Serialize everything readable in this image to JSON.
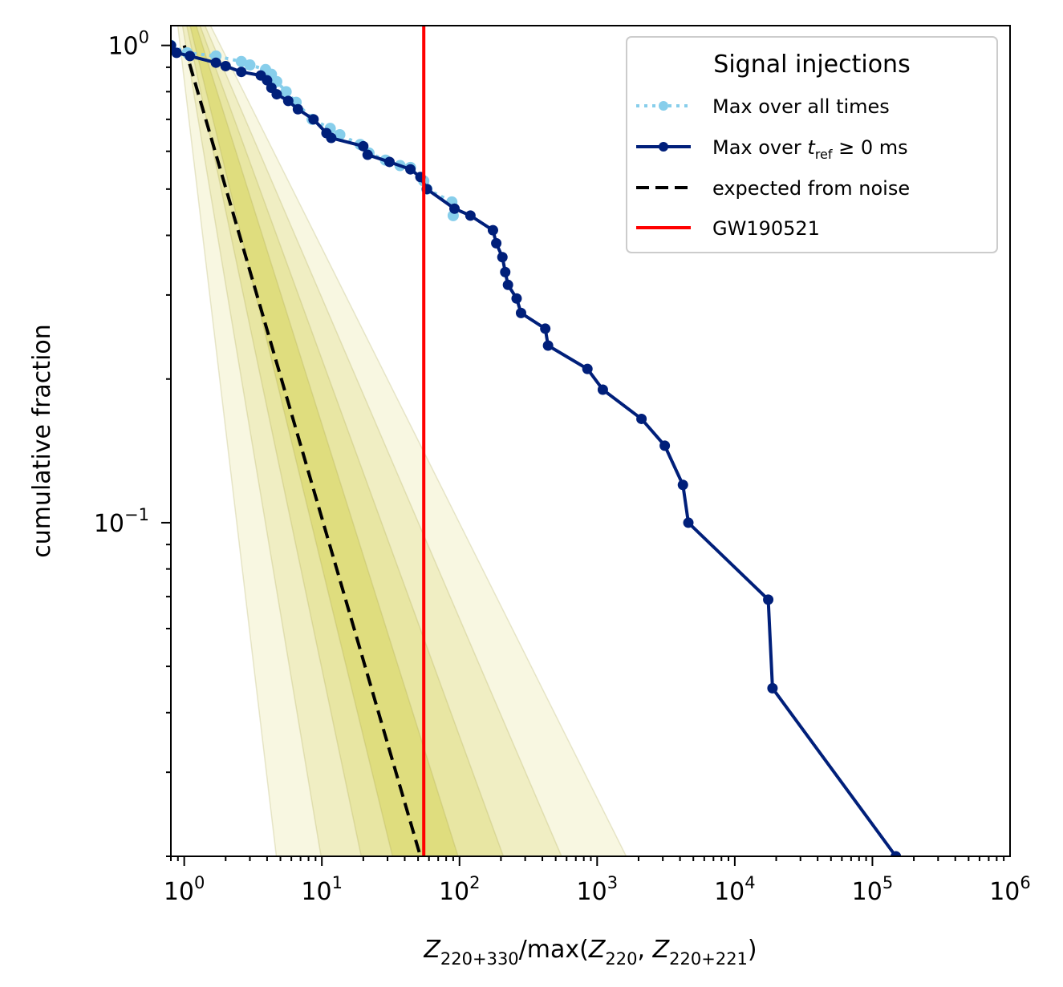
{
  "chart_data": {
    "type": "line",
    "title": "",
    "xlabel": {
      "Z": "Z",
      "sub_num": "220+330",
      "mid": "/max(",
      "sub_a": "220",
      "comma": ", ",
      "sub_b": "220+221",
      "close": ")"
    },
    "ylabel": "cumulative fraction",
    "xscale": "log",
    "yscale": "log",
    "xlim": [
      0.8,
      1000000
    ],
    "ylim": [
      0.02,
      1.1
    ],
    "x_ticks": [
      {
        "value": 1,
        "label": "10",
        "exp": "0"
      },
      {
        "value": 10,
        "label": "10",
        "exp": "1"
      },
      {
        "value": 100,
        "label": "10",
        "exp": "2"
      },
      {
        "value": 1000,
        "label": "10",
        "exp": "3"
      },
      {
        "value": 10000,
        "label": "10",
        "exp": "4"
      },
      {
        "value": 100000,
        "label": "10",
        "exp": "5"
      },
      {
        "value": 1000000,
        "label": "10",
        "exp": "6"
      }
    ],
    "y_ticks": [
      {
        "value": 1,
        "label": "10",
        "exp": "0"
      },
      {
        "value": 0.1,
        "label": "10",
        "exp": "−1"
      }
    ],
    "grid": false,
    "legend": {
      "title": "Signal injections",
      "placement": "top-right",
      "entries": [
        {
          "label": "Max over all times"
        },
        {
          "label_pre": "Max over ",
          "label_var": "t",
          "label_sub": "ref",
          "label_post": " ≥ 0 ms"
        },
        {
          "label": "expected from noise"
        },
        {
          "label": "GW190521"
        }
      ]
    },
    "colors": {
      "all_times": "#87ceeb",
      "t_ref": "#001f7a",
      "noise": "#000000",
      "gw190521": "#ff0000",
      "band": "#d6d35a"
    },
    "gw190521_x": 55,
    "series": [
      {
        "id": "all_times",
        "x": [
          0.8,
          1.05,
          1.7,
          2.6,
          3.0,
          3.9,
          4.3,
          4.7,
          5.5,
          6.5,
          8.5,
          11.5,
          13.5,
          19,
          22,
          29,
          37,
          44,
          55,
          58,
          88,
          90
        ],
        "y": [
          1.0,
          0.965,
          0.95,
          0.925,
          0.91,
          0.89,
          0.87,
          0.84,
          0.8,
          0.76,
          0.7,
          0.67,
          0.65,
          0.62,
          0.595,
          0.575,
          0.56,
          0.555,
          0.52,
          0.5,
          0.47,
          0.44
        ]
      },
      {
        "id": "t_ref",
        "x": [
          0.8,
          0.88,
          1.1,
          1.7,
          2.0,
          2.6,
          3.6,
          4.0,
          4.3,
          4.7,
          5.7,
          6.7,
          8.7,
          10.8,
          11.7,
          20,
          21.5,
          31,
          44,
          52,
          58,
          92,
          120,
          175,
          185,
          205,
          215,
          225,
          260,
          280,
          420,
          440,
          850,
          1100,
          2100,
          3100,
          4200,
          4600,
          17500,
          18800,
          148000
        ],
        "y": [
          1.0,
          0.965,
          0.95,
          0.92,
          0.905,
          0.88,
          0.865,
          0.845,
          0.815,
          0.79,
          0.765,
          0.735,
          0.7,
          0.655,
          0.64,
          0.615,
          0.59,
          0.57,
          0.55,
          0.53,
          0.5,
          0.455,
          0.44,
          0.41,
          0.385,
          0.36,
          0.335,
          0.315,
          0.295,
          0.275,
          0.255,
          0.235,
          0.21,
          0.19,
          0.165,
          0.145,
          0.12,
          0.1,
          0.069,
          0.045,
          0.02
        ]
      },
      {
        "id": "noise",
        "x": [
          1.0,
          52
        ],
        "y": [
          1.0,
          0.02
        ]
      }
    ]
  }
}
